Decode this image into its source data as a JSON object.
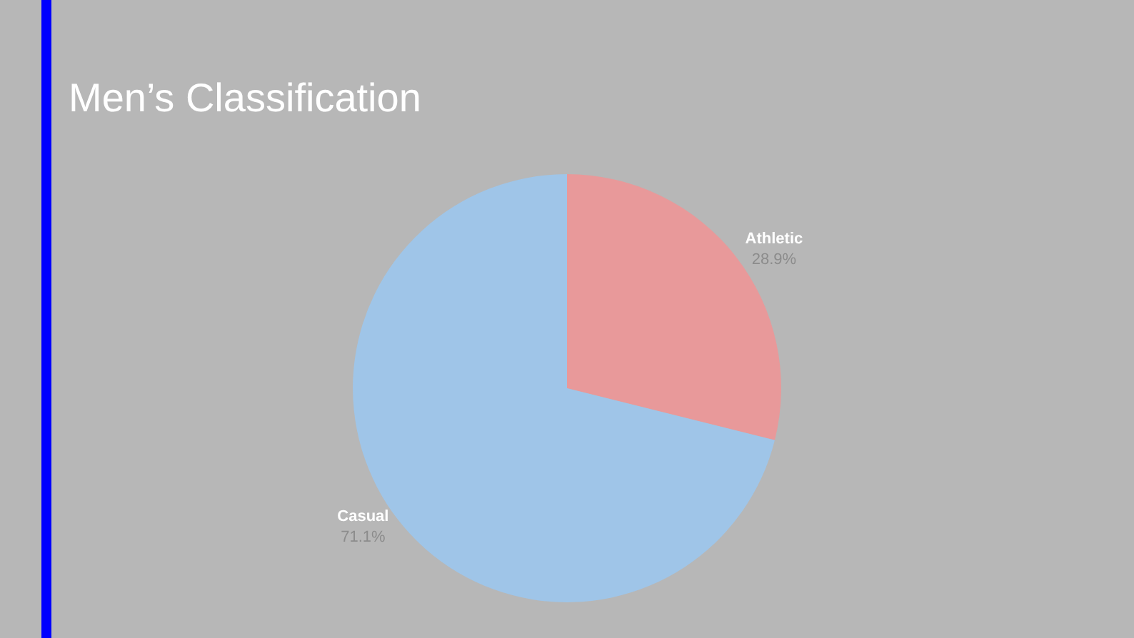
{
  "chart_data": {
    "type": "pie",
    "title": "Men’s Classification",
    "categories": [
      "Athletic",
      "Casual"
    ],
    "values": [
      28.9,
      71.1
    ],
    "value_labels": [
      "28.9%",
      "71.1%"
    ],
    "colors": [
      "#e8999a",
      "#9fc5e8"
    ],
    "legend": false
  }
}
